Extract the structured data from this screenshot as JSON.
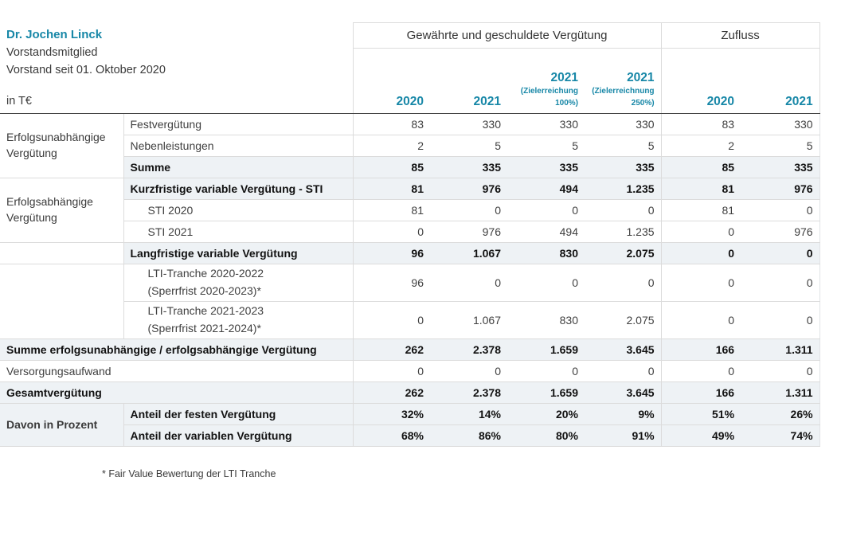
{
  "colors": {
    "accent": "#1787a7",
    "row_shade": "#eef2f5"
  },
  "person": {
    "name": "Dr. Jochen Linck",
    "role": "Vorstandsmitglied",
    "tenure": "Vorstand seit 01. Oktober 2020",
    "unit": "in T€"
  },
  "header": {
    "group_granted": "Gewährte und geschuldete Vergütung",
    "group_inflow": "Zufluss",
    "columns": [
      {
        "year": "2020"
      },
      {
        "year": "2021"
      },
      {
        "year": "2021",
        "note1": "(Zielerreichung",
        "note2": "100%)"
      },
      {
        "year": "2021",
        "note1": "(Zielerreichnung",
        "note2": "250%)"
      },
      {
        "year": "2020"
      },
      {
        "year": "2021"
      }
    ]
  },
  "groups": {
    "independent": "Erfolgsunabhängige Vergütung",
    "dependent": "Erfolgsabhängige Vergütung",
    "percent": "Davon in Prozent"
  },
  "rows": [
    {
      "label": "Festvergütung",
      "values": [
        "83",
        "330",
        "330",
        "330",
        "83",
        "330"
      ]
    },
    {
      "label": "Nebenleistungen",
      "values": [
        "2",
        "5",
        "5",
        "5",
        "2",
        "5"
      ]
    },
    {
      "label": "Summe",
      "values": [
        "85",
        "335",
        "335",
        "335",
        "85",
        "335"
      ]
    },
    {
      "label": "Kurzfristige variable Vergütung - STI",
      "values": [
        "81",
        "976",
        "494",
        "1.235",
        "81",
        "976"
      ]
    },
    {
      "label": "STI 2020",
      "values": [
        "81",
        "0",
        "0",
        "0",
        "81",
        "0"
      ]
    },
    {
      "label": "STI 2021",
      "values": [
        "0",
        "976",
        "494",
        "1.235",
        "0",
        "976"
      ]
    },
    {
      "label": "Langfristige variable Vergütung",
      "values": [
        "96",
        "1.067",
        "830",
        "2.075",
        "0",
        "0"
      ]
    },
    {
      "label": "LTI-Tranche 2020-2022",
      "label2": "(Sperrfrist 2020-2023)*",
      "values": [
        "96",
        "0",
        "0",
        "0",
        "0",
        "0"
      ]
    },
    {
      "label": "LTI-Tranche 2021-2023",
      "label2": "(Sperrfrist 2021-2024)*",
      "values": [
        "0",
        "1.067",
        "830",
        "2.075",
        "0",
        "0"
      ]
    },
    {
      "label": "Summe erfolgsunabhängige / erfolgsabhängige Vergütung",
      "values": [
        "262",
        "2.378",
        "1.659",
        "3.645",
        "166",
        "1.311"
      ]
    },
    {
      "label": "Versorgungsaufwand",
      "values": [
        "0",
        "0",
        "0",
        "0",
        "0",
        "0"
      ]
    },
    {
      "label": "Gesamtvergütung",
      "values": [
        "262",
        "2.378",
        "1.659",
        "3.645",
        "166",
        "1.311"
      ]
    },
    {
      "label": "Anteil der festen Vergütung",
      "values": [
        "32%",
        "14%",
        "20%",
        "9%",
        "51%",
        "26%"
      ]
    },
    {
      "label": "Anteil der variablen Vergütung",
      "values": [
        "68%",
        "86%",
        "80%",
        "91%",
        "49%",
        "74%"
      ]
    }
  ],
  "footnote": "* Fair Value Bewertung der LTI Tranche"
}
